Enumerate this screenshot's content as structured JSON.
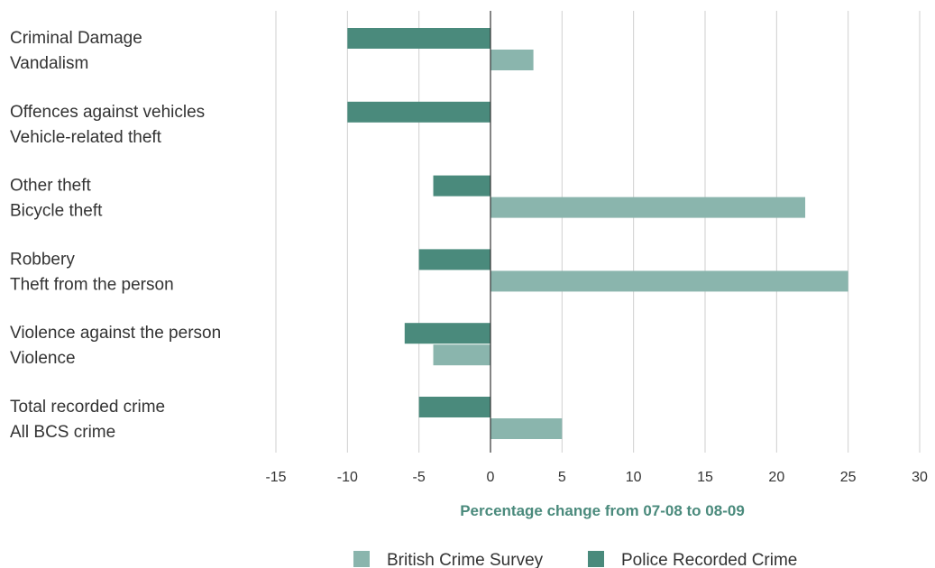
{
  "chart_data": {
    "type": "bar",
    "orientation": "horizontal",
    "groups": [
      {
        "labels": [
          "Criminal Damage",
          "Vandalism"
        ],
        "police": -10,
        "bcs": 3
      },
      {
        "labels": [
          "Offences against vehicles",
          "Vehicle-related theft"
        ],
        "police": -10,
        "bcs": null
      },
      {
        "labels": [
          "Other theft",
          "Bicycle theft"
        ],
        "police": -4,
        "bcs": 22
      },
      {
        "labels": [
          "Robbery",
          "Theft from the person"
        ],
        "police": -5,
        "bcs": 25
      },
      {
        "labels": [
          "Violence against the person",
          "Violence"
        ],
        "police": -6,
        "bcs": -4
      },
      {
        "labels": [
          "Total recorded crime",
          "All BCS crime"
        ],
        "police": -5,
        "bcs": 5
      }
    ],
    "series": [
      {
        "key": "bcs",
        "name": "British Crime Survey",
        "color": "#8ab5ad"
      },
      {
        "key": "police",
        "name": "Police Recorded Crime",
        "color": "#4a8a7c"
      }
    ],
    "xlabel": "Percentage change from 07-08 to 08-09",
    "xlabel_color": "#4a8a7c",
    "xlim": [
      -15,
      30
    ],
    "xticks": [
      "-15",
      "-10",
      "-5",
      "0",
      "5",
      "10",
      "15",
      "20",
      "25",
      "30"
    ],
    "grid": true,
    "legend_position": "bottom"
  }
}
